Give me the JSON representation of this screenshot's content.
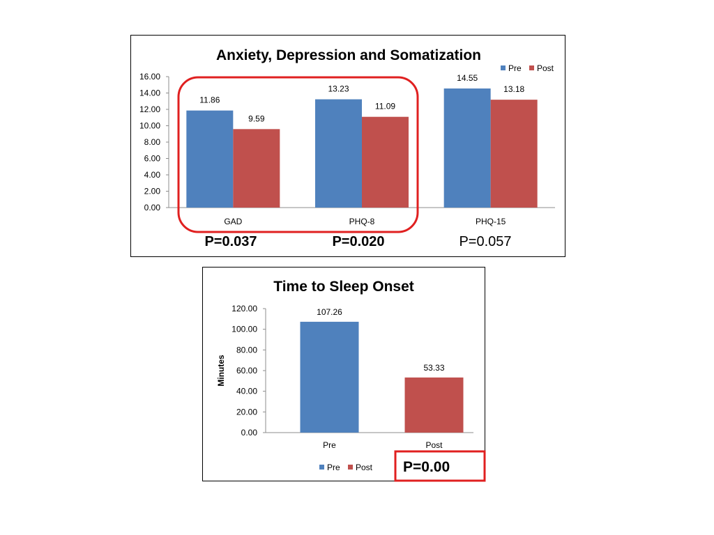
{
  "colors": {
    "pre": "#4F81BD",
    "post": "#C0504D",
    "highlight": "#E02020",
    "axis": "#8C8C8C"
  },
  "chart_data": [
    {
      "type": "bar",
      "title": "Anxiety, Depression and Somatization",
      "categories": [
        "GAD",
        "PHQ-8",
        "PHQ-15"
      ],
      "series": [
        {
          "name": "Pre",
          "values": [
            11.86,
            13.23,
            14.55
          ],
          "value_labels": [
            "11.86",
            "13.23",
            "14.55"
          ]
        },
        {
          "name": "Post",
          "values": [
            9.59,
            11.09,
            13.18
          ],
          "value_labels": [
            "9.59",
            "11.09",
            "13.18"
          ]
        }
      ],
      "ylim": [
        0,
        16
      ],
      "yticks": [
        "0.00",
        "2.00",
        "4.00",
        "6.00",
        "8.00",
        "10.00",
        "12.00",
        "14.00",
        "16.00"
      ],
      "xlabel": "",
      "ylabel": "",
      "legend": "top-right",
      "grid": false,
      "p_values": [
        "P=0.037",
        "P=0.020",
        "P=0.057"
      ],
      "highlighted_categories": [
        "GAD",
        "PHQ-8"
      ]
    },
    {
      "type": "bar",
      "title": "Time to Sleep Onset",
      "categories": [
        "Pre",
        "Post"
      ],
      "values": [
        107.26,
        53.33
      ],
      "value_labels": [
        "107.26",
        "53.33"
      ],
      "ylim": [
        0,
        120
      ],
      "yticks": [
        "0.00",
        "20.00",
        "40.00",
        "60.00",
        "80.00",
        "100.00",
        "120.00"
      ],
      "xlabel": "",
      "ylabel": "Minutes",
      "legend": "bottom",
      "legend_entries": [
        "Pre",
        "Post"
      ],
      "grid": false,
      "p_value": "P=0.00"
    }
  ]
}
